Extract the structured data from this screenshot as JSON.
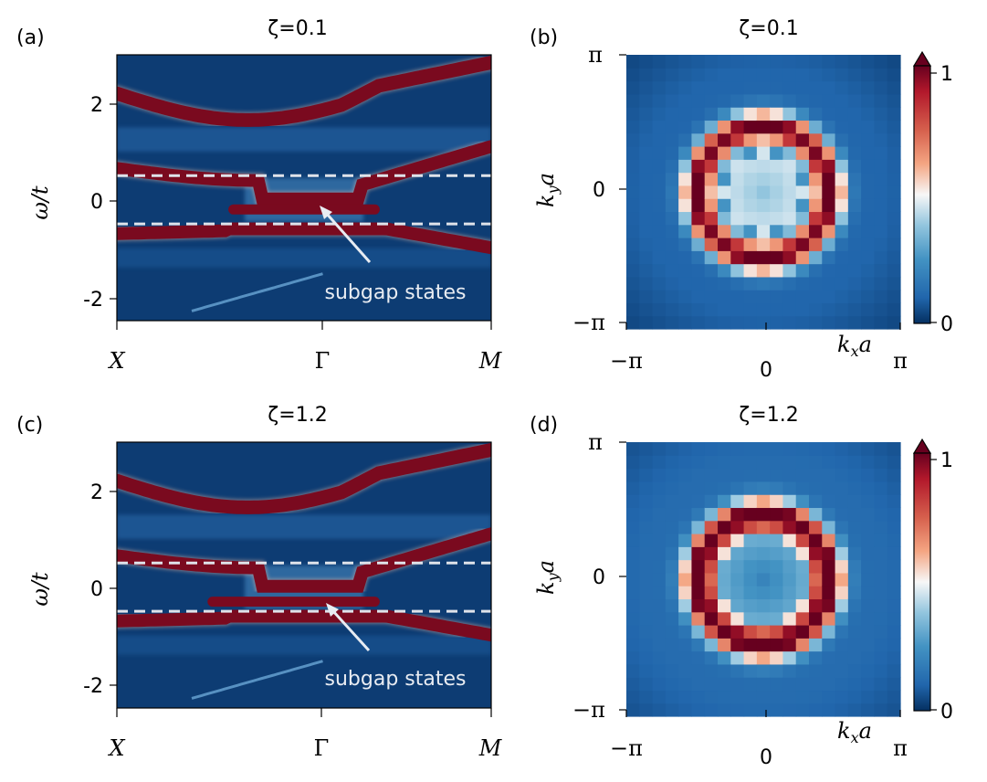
{
  "panels": [
    {
      "kind": "spectral",
      "label": "(a)",
      "title": "ζ=0.1",
      "zeta": 0.1,
      "ylabel": "ω/t",
      "yticks": [
        "2",
        "0",
        "-2"
      ],
      "xticks": [
        "X",
        "Γ",
        "M"
      ],
      "annotation": "subgap states",
      "dashed_lines": [
        0.5,
        -0.5
      ]
    },
    {
      "kind": "momentum",
      "label": "(b)",
      "title": "ζ=0.1",
      "zeta": 0.1,
      "ylabel": "k_y a",
      "xlabel": "k_x a",
      "yticks": [
        "π",
        "0",
        "−π"
      ],
      "xticks": [
        "−π",
        "0",
        "π"
      ],
      "colorbar": {
        "max_label": "1",
        "min_label": "0"
      }
    },
    {
      "kind": "spectral",
      "label": "(c)",
      "title": "ζ=1.2",
      "zeta": 1.2,
      "ylabel": "ω/t",
      "yticks": [
        "2",
        "0",
        "-2"
      ],
      "xticks": [
        "X",
        "Γ",
        "M"
      ],
      "annotation": "subgap states",
      "dashed_lines": [
        0.5,
        -0.5
      ]
    },
    {
      "kind": "momentum",
      "label": "(d)",
      "title": "ζ=1.2",
      "zeta": 1.2,
      "ylabel": "k_y a",
      "xlabel": "k_x a",
      "yticks": [
        "π",
        "0",
        "−π"
      ],
      "xticks": [
        "−π",
        "0",
        "π"
      ],
      "colorbar": {
        "max_label": "1",
        "min_label": "0"
      }
    }
  ],
  "colormap": "RdBu_r",
  "chart_data": [
    {
      "type": "heatmap",
      "title": "ζ=0.1",
      "xlabel": "",
      "ylabel": "ω/t",
      "x": [
        "X",
        "Γ",
        "M"
      ],
      "ylim": [
        -2.5,
        3.0
      ],
      "dashed_lines": [
        0.5,
        -0.5
      ]
    },
    {
      "type": "heatmap",
      "title": "ζ=0.1",
      "xlabel": "k_x a",
      "ylabel": "k_y a",
      "xlim": [
        -3.1416,
        3.1416
      ],
      "ylim": [
        -3.1416,
        3.1416
      ],
      "grid_size": 21,
      "zlim": [
        0,
        1
      ],
      "ring_radius_fraction": 0.5
    },
    {
      "type": "heatmap",
      "title": "ζ=1.2",
      "xlabel": "",
      "ylabel": "ω/t",
      "x": [
        "X",
        "Γ",
        "M"
      ],
      "ylim": [
        -2.5,
        3.0
      ],
      "dashed_lines": [
        0.5,
        -0.5
      ]
    },
    {
      "type": "heatmap",
      "title": "ζ=1.2",
      "xlabel": "k_x a",
      "ylabel": "k_y a",
      "xlim": [
        -3.1416,
        3.1416
      ],
      "ylim": [
        -3.1416,
        3.1416
      ],
      "grid_size": 21,
      "zlim": [
        0,
        1
      ],
      "ring_radius_fraction": 0.5
    }
  ]
}
